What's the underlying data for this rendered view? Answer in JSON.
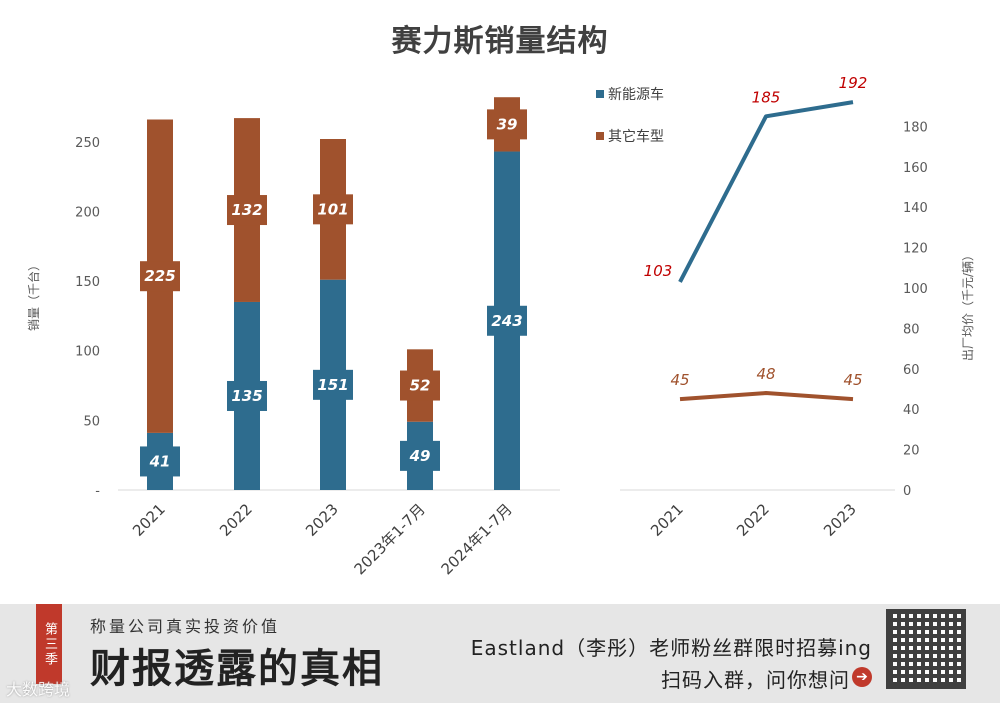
{
  "title": "赛力斯销量结构",
  "chart_data": [
    {
      "type": "bar",
      "stacked": true,
      "categories": [
        "2021",
        "2022",
        "2023",
        "2023年1-7月",
        "2024年1-7月"
      ],
      "series": [
        {
          "name": "新能源车",
          "color": "#2e6c8e",
          "values": [
            41,
            135,
            151,
            49,
            243
          ]
        },
        {
          "name": "其它车型",
          "color": "#a0522d",
          "values": [
            225,
            132,
            101,
            52,
            39
          ]
        }
      ],
      "ylabel": "销量（千台）",
      "ylim": [
        0,
        280
      ],
      "yticks": [
        "-",
        "50",
        "100",
        "150",
        "200",
        "250"
      ],
      "legend": "top-right"
    },
    {
      "type": "line",
      "categories": [
        "2021",
        "2022",
        "2023"
      ],
      "series": [
        {
          "name": "新能源车",
          "color": "#2e6c8e",
          "label_color": "#c00000",
          "values": [
            103,
            185,
            192
          ]
        },
        {
          "name": "其它车型",
          "color": "#a0522d",
          "label_color": "#a0522d",
          "values": [
            45,
            48,
            45
          ]
        }
      ],
      "ylabel": "出厂均价（千元/辆）",
      "ylim": [
        0,
        200
      ],
      "yticks": [
        "0",
        "20",
        "40",
        "60",
        "80",
        "100",
        "120",
        "140",
        "160",
        "180"
      ]
    }
  ],
  "footer": {
    "season": "第三季",
    "slogan": "称量公司真实投资价值",
    "big_title": "财报透露的真相",
    "recruit": "Eastland（李彤）老师粉丝群限时招募ing",
    "scan": "扫码入群，问你想问",
    "watermark": "大数跨境"
  }
}
